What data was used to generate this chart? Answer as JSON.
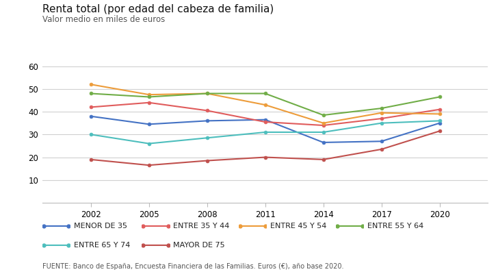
{
  "title": "Renta total (por edad del cabeza de familia)",
  "subtitle": "Valor medio en miles de euros",
  "footnote": "FUENTE: Banco de España, Encuesta Financiera de las Familias. Euros (€), año base 2020.",
  "years": [
    2002,
    2005,
    2008,
    2011,
    2014,
    2017,
    2020
  ],
  "series": {
    "MENOR DE 35": [
      38.0,
      34.5,
      36.0,
      36.5,
      26.5,
      27.0,
      35.0
    ],
    "ENTRE 35 Y 44": [
      42.0,
      44.0,
      40.5,
      35.5,
      34.0,
      37.0,
      41.0
    ],
    "ENTRE 45 Y 54": [
      52.0,
      47.5,
      48.0,
      43.0,
      35.0,
      39.5,
      39.0
    ],
    "ENTRE 55 Y 64": [
      48.0,
      46.5,
      48.0,
      48.0,
      38.5,
      41.5,
      46.5
    ],
    "ENTRE 65 Y 74": [
      30.0,
      26.0,
      28.5,
      31.0,
      31.0,
      35.0,
      36.0
    ],
    "MAYOR DE 75": [
      19.0,
      16.5,
      18.5,
      20.0,
      19.0,
      23.5,
      31.5
    ]
  },
  "colors": {
    "MENOR DE 35": "#4472c4",
    "ENTRE 35 Y 44": "#e05c5c",
    "ENTRE 45 Y 54": "#ed9c3a",
    "ENTRE 55 Y 64": "#70ad47",
    "ENTRE 65 Y 74": "#4dbebd",
    "MAYOR DE 75": "#c0504d"
  },
  "ylim": [
    0,
    65
  ],
  "yticks": [
    10,
    20,
    30,
    40,
    50,
    60
  ],
  "bg_color": "#ffffff",
  "grid_color": "#d0d0d0",
  "title_fontsize": 11,
  "subtitle_fontsize": 8.5,
  "tick_fontsize": 8.5,
  "legend_fontsize": 8,
  "footnote_fontsize": 7
}
